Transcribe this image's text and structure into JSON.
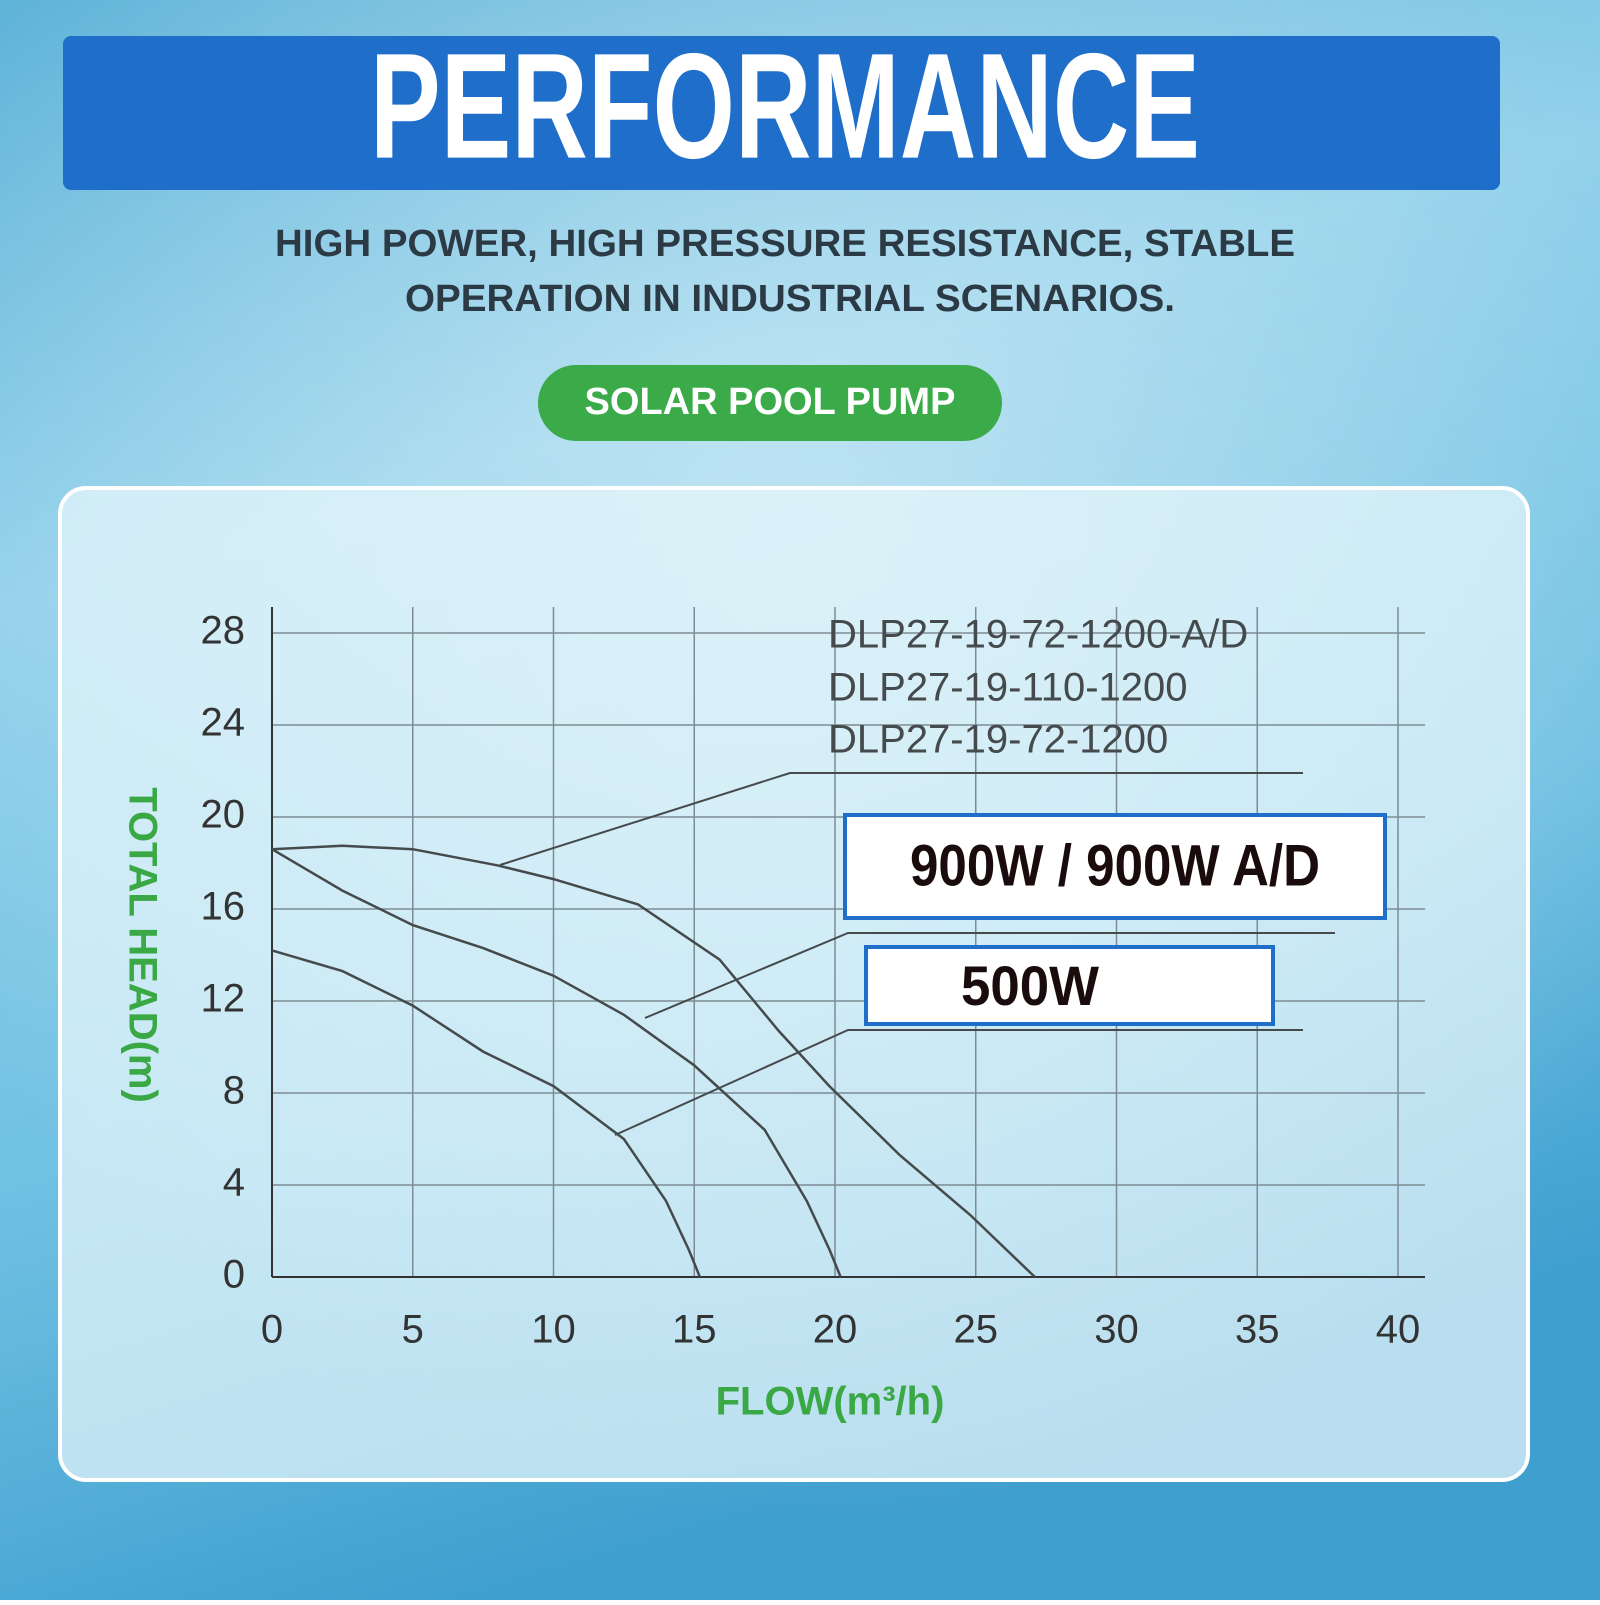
{
  "header": {
    "title": "PERFORMANCE",
    "subtitle": [
      "HIGH POWER, HIGH PRESSURE RESISTANCE, STABLE",
      "OPERATION IN INDUSTRIAL SCENARIOS."
    ],
    "badge": "SOLAR POOL PUMP"
  },
  "chart_data": {
    "type": "line",
    "x_label": "FLOW(m³/h)",
    "y_label": "TOTAL HEAD(m)",
    "xlim": [
      0,
      40
    ],
    "ylim": [
      0,
      28
    ],
    "xticks": [
      0,
      5,
      10,
      15,
      20,
      25,
      30,
      35,
      40
    ],
    "yticks": [
      0,
      4,
      8,
      12,
      16,
      20,
      24,
      28
    ],
    "grid": true,
    "series": [
      {
        "name": "DLP27-19-72-1200-A/D",
        "color": "#454a4c",
        "x": [
          0,
          2.5,
          5,
          8,
          10,
          13,
          15.9,
          18,
          19.8,
          22.3,
          24.8,
          27.1
        ],
        "values": [
          18.6,
          18.75,
          18.6,
          17.9,
          17.3,
          16.2,
          13.8,
          10.7,
          8.3,
          5.3,
          2.7,
          0
        ]
      },
      {
        "name": "DLP27-19-110-1200",
        "color": "#454a4c",
        "x": [
          0,
          2.5,
          5,
          7.5,
          10,
          12.5,
          15,
          17.5,
          19,
          19.8,
          20.2
        ],
        "values": [
          18.6,
          16.8,
          15.3,
          14.3,
          13.1,
          11.4,
          9.2,
          6.4,
          3.3,
          1.2,
          0
        ]
      },
      {
        "name": "DLP27-19-72-1200",
        "color": "#454a4c",
        "x": [
          0,
          2.5,
          5,
          7.5,
          10,
          12.5,
          14,
          14.8,
          15.2
        ],
        "values": [
          14.2,
          13.3,
          11.8,
          9.8,
          8.3,
          6.0,
          3.3,
          1.2,
          0
        ]
      }
    ],
    "annotations": [
      "900W / 900W A/D",
      "500W"
    ]
  }
}
